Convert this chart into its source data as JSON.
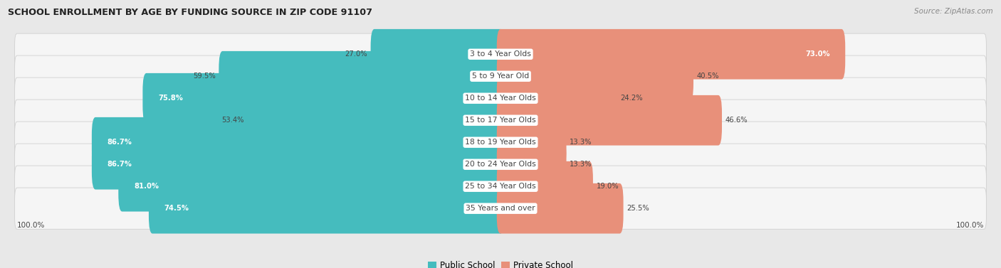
{
  "title": "SCHOOL ENROLLMENT BY AGE BY FUNDING SOURCE IN ZIP CODE 91107",
  "source": "Source: ZipAtlas.com",
  "categories": [
    "3 to 4 Year Olds",
    "5 to 9 Year Old",
    "10 to 14 Year Olds",
    "15 to 17 Year Olds",
    "18 to 19 Year Olds",
    "20 to 24 Year Olds",
    "25 to 34 Year Olds",
    "35 Years and over"
  ],
  "public_values": [
    27.0,
    59.5,
    75.8,
    53.4,
    86.7,
    86.7,
    81.0,
    74.5
  ],
  "private_values": [
    73.0,
    40.5,
    24.2,
    46.6,
    13.3,
    13.3,
    19.0,
    25.5
  ],
  "public_color": "#45BCBE",
  "private_color": "#E8907A",
  "bg_color": "#e8e8e8",
  "row_bg_color": "#f5f5f5",
  "row_border_color": "#d0d0d0",
  "label_color": "#444444",
  "title_color": "#222222",
  "axis_label_left": "100.0%",
  "axis_label_right": "100.0%",
  "legend_public": "Public School",
  "legend_private": "Private School",
  "white_text_threshold_pub": 60,
  "white_text_threshold_priv": 65
}
